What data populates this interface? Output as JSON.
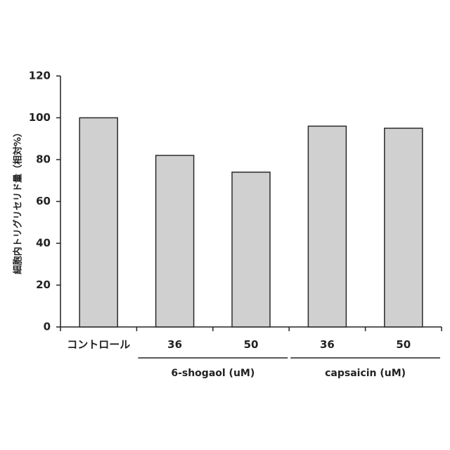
{
  "chart_data": {
    "type": "bar",
    "title": "",
    "ylabel": "細胞内トリグリセリド量（相対%）",
    "xlabel": "",
    "ylim": [
      0,
      120
    ],
    "yticks": [
      0,
      20,
      40,
      60,
      80,
      100,
      120
    ],
    "categories": [
      "コントロール",
      "36",
      "50",
      "36",
      "50"
    ],
    "values": [
      100,
      82,
      74,
      96,
      95
    ],
    "groups": [
      {
        "label": "6-shogaol (uM)",
        "categories": [
          1,
          2
        ]
      },
      {
        "label": "capsaicin (uM)",
        "categories": [
          3,
          4
        ]
      }
    ],
    "bar_color": "#d0d0d0",
    "edge_color": "#2a2a2a",
    "grid": false,
    "legend": "none"
  }
}
